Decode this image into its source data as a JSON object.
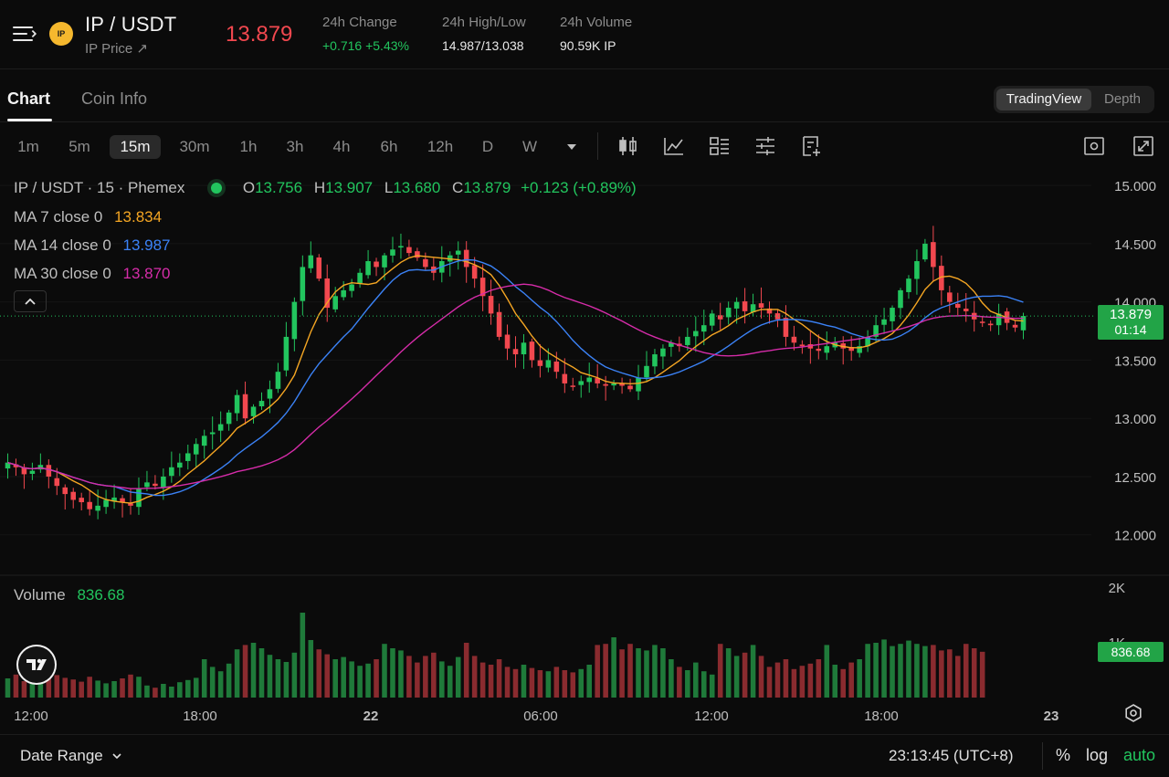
{
  "header": {
    "logo_text": "IP",
    "pair": "IP / USDT",
    "sub_link": "IP Price ↗",
    "last_price": "13.879",
    "stats": [
      {
        "label": "24h Change",
        "value": "+0.716 +5.43%"
      },
      {
        "label": "24h High/Low",
        "value": "14.987/13.038"
      },
      {
        "label": "24h Volume",
        "value": "90.59K IP"
      }
    ]
  },
  "tabs": [
    {
      "label": "Chart",
      "active": true
    },
    {
      "label": "Coin Info",
      "active": false
    }
  ],
  "view_toggle": [
    {
      "label": "TradingView",
      "active": true
    },
    {
      "label": "Depth",
      "active": false
    }
  ],
  "intervals": [
    {
      "label": "1m"
    },
    {
      "label": "5m"
    },
    {
      "label": "15m",
      "active": true
    },
    {
      "label": "30m"
    },
    {
      "label": "1h"
    },
    {
      "label": "3h"
    },
    {
      "label": "4h"
    },
    {
      "label": "6h"
    },
    {
      "label": "12h"
    },
    {
      "label": "D"
    },
    {
      "label": "W"
    }
  ],
  "toolbar_icons": [
    "candle-type-icon",
    "indicator-icon",
    "template-icon",
    "settings-sliders-icon",
    "add-indicator-icon",
    "screenshot-icon",
    "fullscreen-icon"
  ],
  "legend": {
    "title": "IP / USDT · 15 · Phemex",
    "ohlc": {
      "o_label": "O",
      "o": "13.756",
      "h_label": "H",
      "h": "13.907",
      "l_label": "L",
      "l": "13.680",
      "c_label": "C",
      "c": "13.879",
      "change": "+0.123 (+0.89%)"
    },
    "ma": [
      {
        "label": "MA 7 close 0",
        "value": "13.834",
        "color": "#f5a623"
      },
      {
        "label": "MA 14 close 0",
        "value": "13.987",
        "color": "#3b82f6"
      },
      {
        "label": "MA 30 close 0",
        "value": "13.870",
        "color": "#d62ca9"
      }
    ],
    "volume_label": "Volume",
    "volume_value": "836.68"
  },
  "price_axis": {
    "ticks": [
      "15.000",
      "14.500",
      "14.000",
      "13.500",
      "13.000",
      "12.500",
      "12.000"
    ],
    "current_price": "13.879",
    "countdown": "01:14"
  },
  "volume_axis": {
    "ticks": [
      "2K",
      "1K"
    ],
    "current_volume": "836.68"
  },
  "time_axis": [
    "12:00",
    "18:00",
    "22",
    "06:00",
    "12:00",
    "18:00",
    "23"
  ],
  "colors": {
    "up": "#22c55e",
    "down": "#f2484f",
    "up_volume": "#1f7a3a",
    "down_volume": "#8a2b2f"
  },
  "bottom": {
    "date_range": "Date Range",
    "clock": "23:13:45 (UTC+8)",
    "percent": "%",
    "log": "log",
    "auto": "auto"
  },
  "chart_data": {
    "type": "candlestick",
    "title": "IP / USDT · 15 · Phemex",
    "interval": "15m",
    "ylim": [
      11.7,
      15.15
    ],
    "price_ticks": [
      12.0,
      12.5,
      13.0,
      13.5,
      14.0,
      14.5,
      15.0
    ],
    "x_ticks": [
      "12:00",
      "18:00",
      "22",
      "06:00",
      "12:00",
      "18:00",
      "23"
    ],
    "close_path": [
      12.62,
      12.58,
      12.52,
      12.55,
      12.6,
      12.5,
      12.42,
      12.35,
      12.3,
      12.28,
      12.22,
      12.25,
      12.3,
      12.32,
      12.28,
      12.25,
      12.4,
      12.45,
      12.42,
      12.5,
      12.58,
      12.62,
      12.7,
      12.78,
      12.85,
      12.88,
      12.95,
      13.05,
      13.2,
      13.0,
      13.1,
      13.15,
      13.25,
      13.4,
      13.7,
      14.0,
      14.3,
      14.4,
      14.2,
      13.95,
      14.05,
      14.1,
      14.15,
      14.25,
      14.35,
      14.3,
      14.4,
      14.45,
      14.48,
      14.42,
      14.38,
      14.3,
      14.25,
      14.35,
      14.4,
      14.44,
      14.3,
      14.2,
      14.05,
      13.9,
      13.7,
      13.6,
      13.55,
      13.65,
      13.5,
      13.45,
      13.5,
      13.4,
      13.3,
      13.28,
      13.32,
      13.35,
      13.3,
      13.28,
      13.3,
      13.28,
      13.25,
      13.35,
      13.45,
      13.55,
      13.6,
      13.65,
      13.62,
      13.7,
      13.75,
      13.8,
      13.9,
      13.85,
      13.95,
      14.0,
      13.92,
      13.98,
      13.95,
      13.9,
      13.85,
      13.7,
      13.65,
      13.62,
      13.6,
      13.58,
      13.62,
      13.65,
      13.6,
      13.58,
      13.62,
      13.7,
      13.8,
      13.85,
      13.95,
      14.1,
      14.2,
      14.35,
      14.5,
      14.3,
      14.1,
      14.0,
      13.95,
      13.92,
      13.85,
      13.82,
      13.8,
      13.9,
      13.82,
      13.78,
      13.88
    ],
    "last": {
      "open": 13.756,
      "high": 13.907,
      "low": 13.68,
      "close": 13.879
    },
    "series": [
      {
        "name": "MA 7 close 0",
        "last": 13.834
      },
      {
        "name": "MA 14 close 0",
        "last": 13.987
      },
      {
        "name": "MA 30 close 0",
        "last": 13.87
      }
    ],
    "volume": {
      "label": "Volume",
      "last": 836.68,
      "ylim": [
        0,
        2000
      ],
      "values": [
        350,
        420,
        300,
        380,
        500,
        340,
        410,
        360,
        330,
        290,
        380,
        310,
        260,
        300,
        350,
        420,
        380,
        220,
        180,
        250,
        200,
        280,
        320,
        360,
        700,
        560,
        480,
        620,
        880,
        960,
        1000,
        900,
        780,
        700,
        650,
        820,
        1550,
        1050,
        880,
        790,
        700,
        740,
        660,
        580,
        620,
        700,
        980,
        900,
        860,
        760,
        640,
        760,
        820,
        660,
        580,
        740,
        1000,
        760,
        640,
        600,
        700,
        560,
        520,
        600,
        540,
        500,
        480,
        560,
        500,
        460,
        520,
        600,
        960,
        980,
        1100,
        880,
        980,
        900,
        860,
        960,
        900,
        700,
        560,
        500,
        640,
        480,
        420,
        980,
        900,
        760,
        820,
        960,
        760,
        560,
        640,
        700,
        520,
        580,
        620,
        700,
        960,
        600,
        520,
        640,
        700,
        980,
        1000,
        1060,
        940,
        980,
        1040,
        980,
        940,
        960,
        860,
        880,
        760,
        980,
        900,
        836
      ]
    }
  }
}
